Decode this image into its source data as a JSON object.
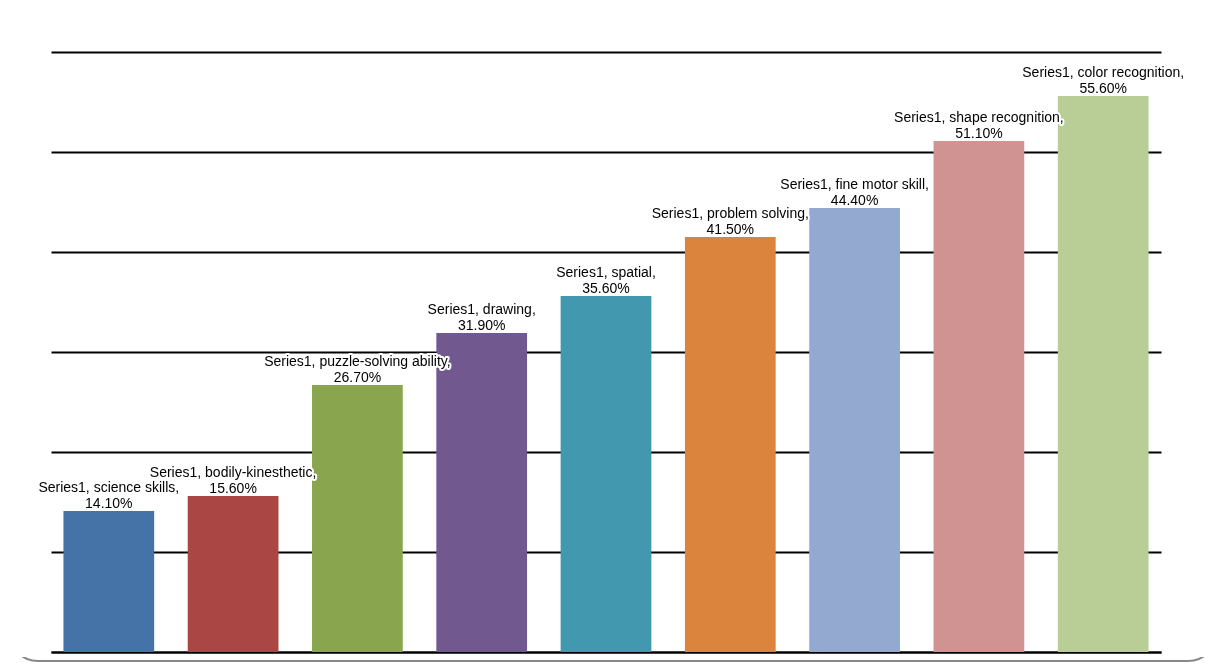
{
  "chart_data": {
    "type": "bar",
    "categories": [
      null,
      null,
      null,
      null,
      null,
      null,
      null,
      null,
      null
    ],
    "values": [
      14.1,
      15.6,
      26.7,
      31.9,
      35.6,
      41.5,
      44.4,
      51.1,
      55.6
    ],
    "colors": [
      "#4573a7",
      "#aa4643",
      "#89a54e",
      "#71588f",
      "#4198af",
      "#db843d",
      "#93a9cf",
      "#d19392",
      "#b9cd96"
    ],
    "value_labels": [
      "Series1, science skills, 14.10%",
      "Series1, bodily-kinesthetic, 15.60%",
      "Series1, puzzle-solving ability, 26.70%",
      "Series1, drawing, 31.90%",
      "Series1, spatial, 35.60%",
      "Series1, problem solving, 41.50%",
      "Series1, fine motor skill, 44.40%",
      "Series1, shape recognition, 51.10%",
      "Series1, color recognition, 55.60%"
    ],
    "grid": "y"
  }
}
